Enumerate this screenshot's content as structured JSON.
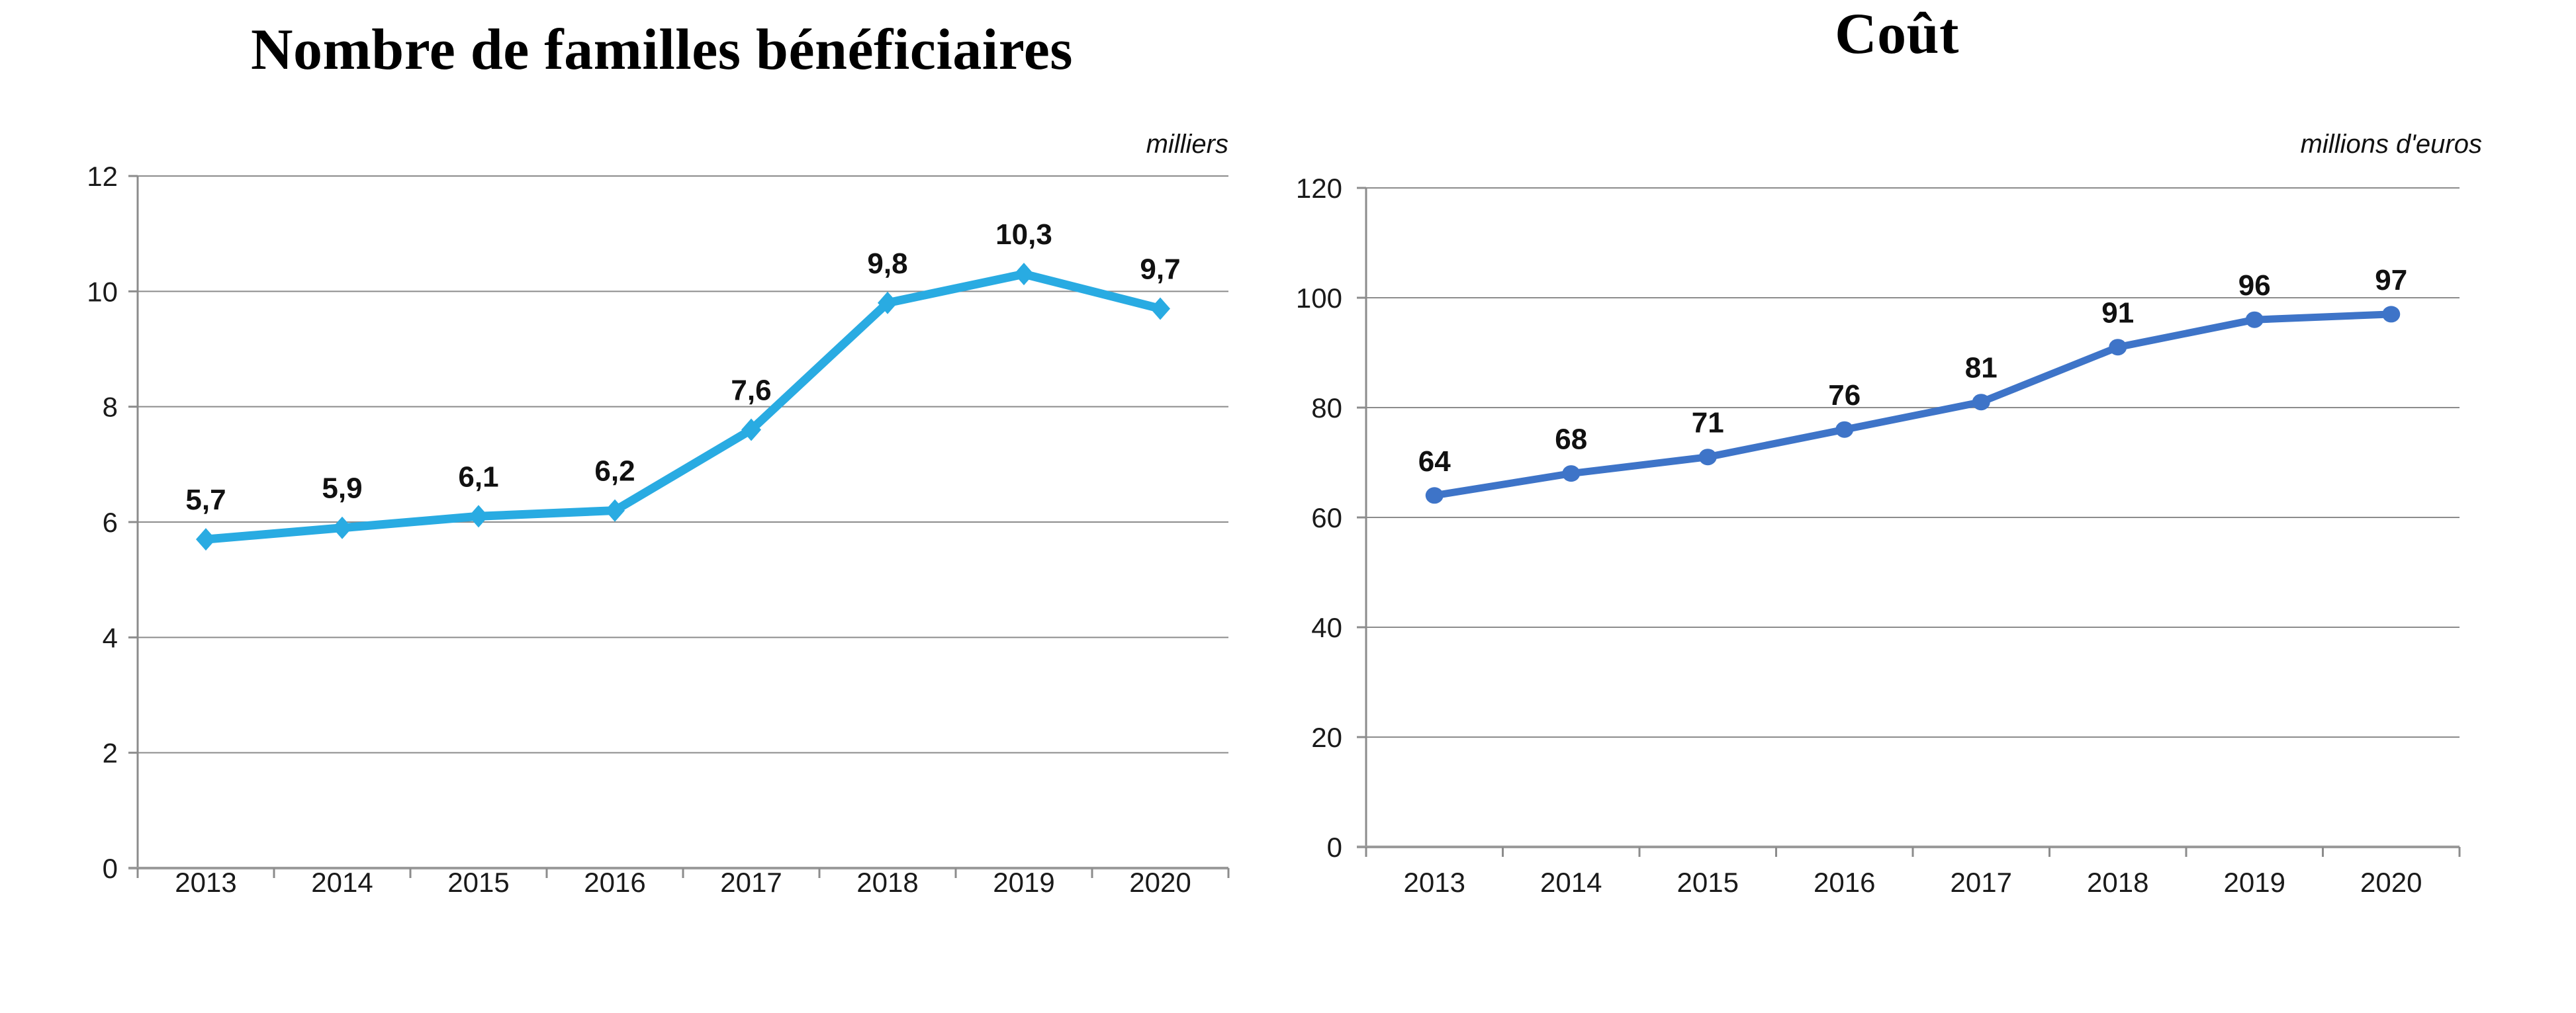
{
  "page": {
    "background": "#ffffff"
  },
  "colors": {
    "grid": "#8c8c8c",
    "axis": "#9b9b9b",
    "tick": "#8c8c8c",
    "text": "#1a1a1a",
    "left_series": "#29abe2",
    "right_series": "#3e74c8"
  },
  "chart_data": [
    {
      "type": "line",
      "title": "Nombre de familles bénéficiaires",
      "unit_label": "milliers",
      "categories": [
        "2013",
        "2014",
        "2015",
        "2016",
        "2017",
        "2018",
        "2019",
        "2020"
      ],
      "values": [
        5.7,
        5.9,
        6.1,
        6.2,
        7.6,
        9.8,
        10.3,
        9.7
      ],
      "value_labels": [
        "5,7",
        "5,9",
        "6,1",
        "6,2",
        "7,6",
        "9,8",
        "10,3",
        "9,7"
      ],
      "ylim": [
        0,
        12
      ],
      "ytick_step": 2,
      "ytick_labels": [
        "0",
        "2",
        "4",
        "6",
        "8",
        "10",
        "12"
      ],
      "line_color": "#29abe2",
      "marker": "diamond",
      "grid": true,
      "legend": "none"
    },
    {
      "type": "line",
      "title": "Coût",
      "unit_label": "millions d'euros",
      "categories": [
        "2013",
        "2014",
        "2015",
        "2016",
        "2017",
        "2018",
        "2019",
        "2020"
      ],
      "values": [
        64,
        68,
        71,
        76,
        81,
        91,
        96,
        97
      ],
      "value_labels": [
        "64",
        "68",
        "71",
        "76",
        "81",
        "91",
        "96",
        "97"
      ],
      "ylim": [
        0,
        120
      ],
      "ytick_step": 20,
      "ytick_labels": [
        "0",
        "20",
        "40",
        "60",
        "80",
        "100",
        "120"
      ],
      "line_color": "#3e74c8",
      "marker": "circle",
      "grid": true,
      "legend": "none"
    }
  ]
}
